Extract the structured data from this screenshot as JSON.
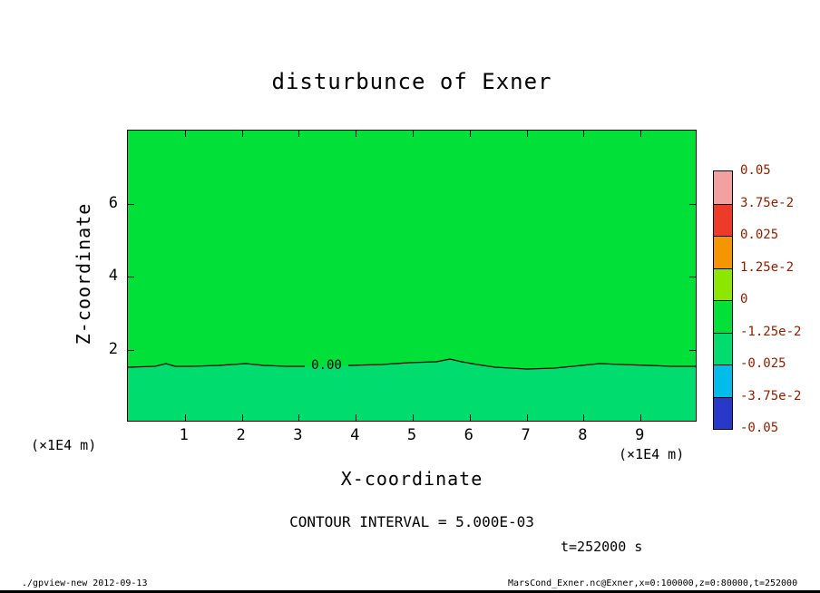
{
  "chart_data": {
    "type": "filled_contour",
    "title": "disturbunce of Exner",
    "xlabel": "X-coordinate",
    "ylabel": "Z-coordinate",
    "x_unit_label": "(×1E4 m)",
    "y_unit_label": "(×1E4 m)",
    "xlim": [
      0,
      10
    ],
    "ylim": [
      0,
      8
    ],
    "x_ticks": [
      1,
      2,
      3,
      4,
      5,
      6,
      7,
      8,
      9
    ],
    "y_ticks": [
      2,
      4,
      6
    ],
    "contour": {
      "zero_line_label": "0.00",
      "zero_line_height_x1e4m": 1.5,
      "interval_text": "CONTOUR INTERVAL = 5.000E-03"
    },
    "field_summary": "Near-zero Exner disturbance everywhere: slightly positive above z≈1.5×10^4 m, slightly negative below the wavy 0.00 contour line",
    "region_colors": {
      "positive_band": "#00E038",
      "negative_band": "#00DC6E"
    },
    "colorbar": {
      "labels": [
        "0.05",
        "3.75e-2",
        "0.025",
        "1.25e-2",
        "0",
        "-1.25e-2",
        "-0.025",
        "-3.75e-2",
        "-0.05"
      ],
      "band_colors": [
        "#F5A0A0",
        "#EE3A28",
        "#F59600",
        "#8CE600",
        "#00E038",
        "#00DC6E",
        "#00BCE8",
        "#2838C8"
      ],
      "label_color": "#8B2000"
    },
    "time_label": "t=252000 s"
  },
  "footer": {
    "left": "./gpview-new  2012-09-13",
    "right": "MarsCond_Exner.nc@Exner,x=0:100000,z=0:80000,t=252000"
  }
}
